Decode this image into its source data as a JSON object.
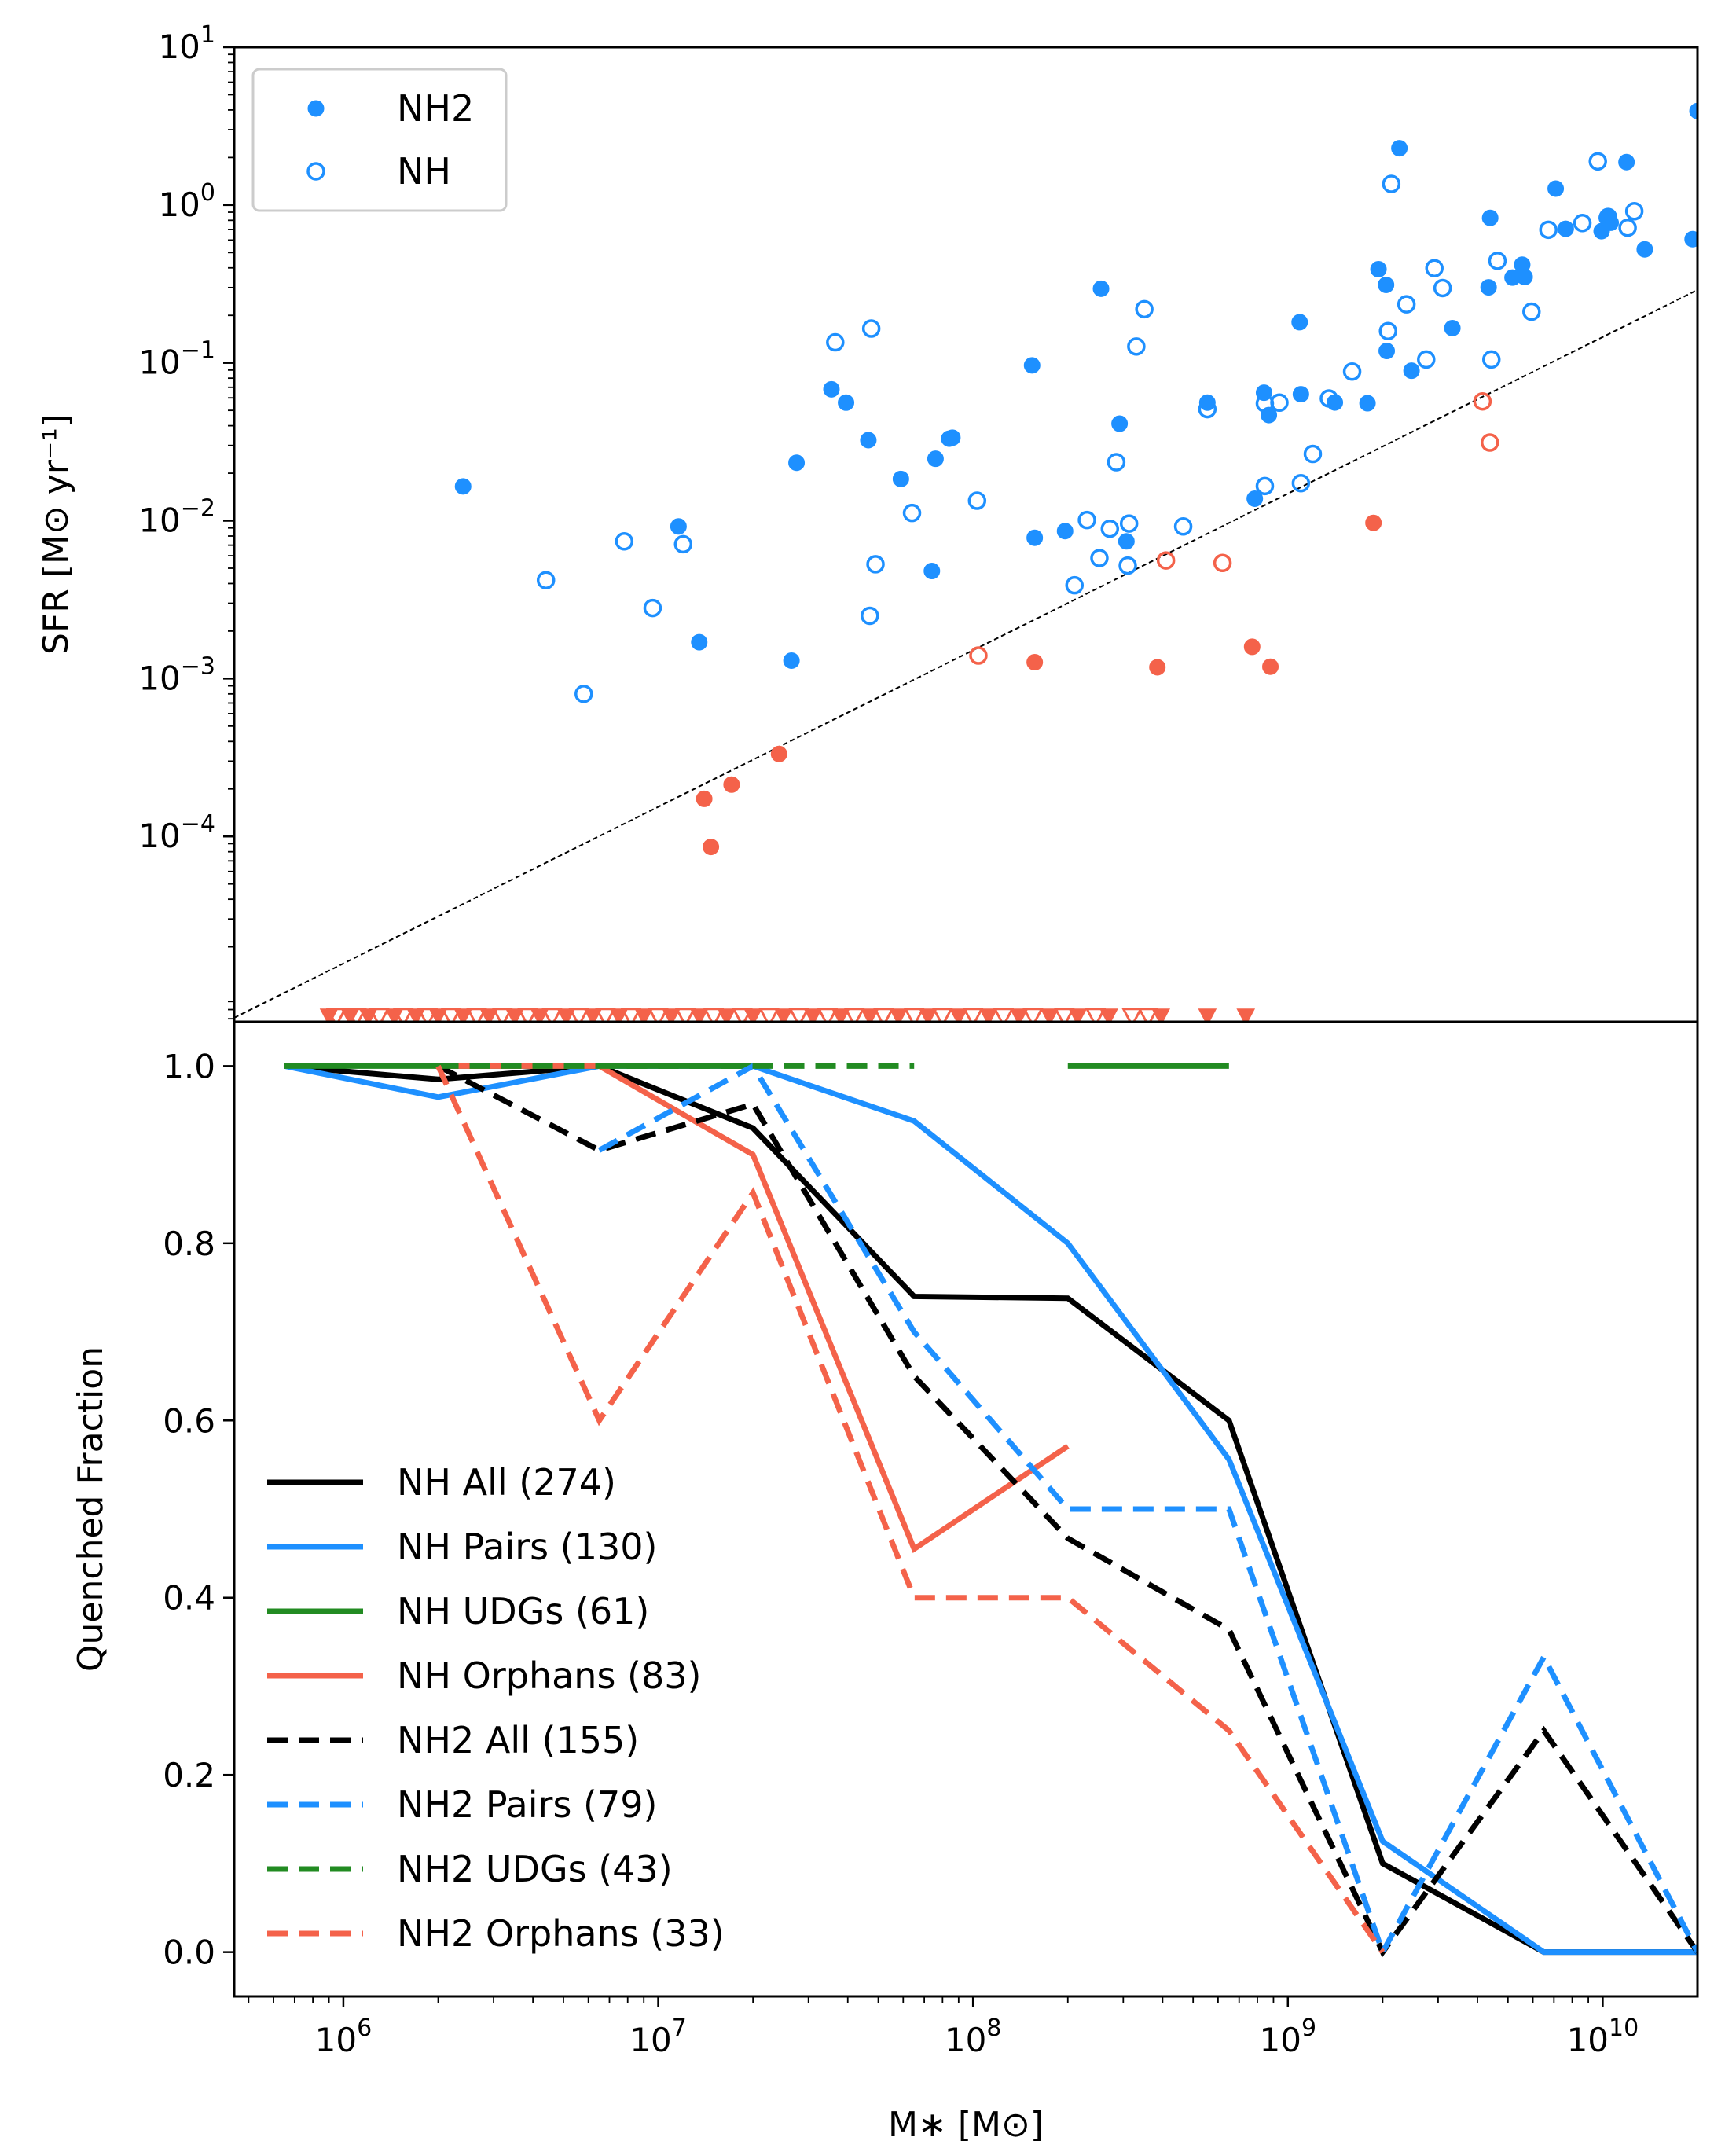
{
  "colors": {
    "blue": "#1e90ff",
    "red": "#f4624a",
    "green": "#228b22",
    "black": "#000000"
  },
  "chart_data": [
    {
      "panel": "top",
      "type": "scatter",
      "xscale": "log",
      "yscale": "log",
      "xlim": [
        450000,
        20000000000
      ],
      "ylim": [
        6.7e-06,
        10
      ],
      "ylabel": "SFR [M⊙ yr⁻¹]",
      "yticks": [
        {
          "value": 10,
          "label": "10",
          "exp": "1"
        },
        {
          "value": 1,
          "label": "10",
          "exp": "0"
        },
        {
          "value": 0.1,
          "label": "10",
          "exp": "−1"
        },
        {
          "value": 0.01,
          "label": "10",
          "exp": "−2"
        },
        {
          "value": 0.001,
          "label": "10",
          "exp": "−3"
        },
        {
          "value": 0.0001,
          "label": "10",
          "exp": "−4"
        }
      ],
      "legend": {
        "position": "top-left",
        "entries": [
          {
            "label": "NH2",
            "marker": "filled-circle"
          },
          {
            "label": "NH",
            "marker": "open-circle"
          }
        ]
      },
      "threshold_line": {
        "style": "dotted",
        "color": "black",
        "points": [
          [
            450000,
            7.1e-06
          ],
          [
            20000000000,
            0.29
          ]
        ]
      },
      "series": [
        {
          "name": "NH2",
          "marker": "filled-circle",
          "star_forming": [
            [
              2400000,
              0.0165
            ],
            [
              11600000,
              0.0092
            ],
            [
              13500000,
              0.0017
            ],
            [
              26500000,
              0.0013
            ],
            [
              27500000,
              0.0233
            ],
            [
              35500000,
              0.068
            ],
            [
              39500000,
              0.056
            ],
            [
              46500000,
              0.0324
            ],
            [
              59000000,
              0.0184
            ],
            [
              74000000,
              0.0048
            ],
            [
              76000000,
              0.0247
            ],
            [
              84000000,
              0.0331
            ],
            [
              86000000,
              0.0336
            ],
            [
              154000000,
              0.0964
            ],
            [
              157000000,
              0.0078
            ],
            [
              196000000,
              0.0086
            ],
            [
              255000000,
              0.295
            ],
            [
              292000000,
              0.0412
            ],
            [
              307000000,
              0.0074
            ],
            [
              555000000,
              0.056
            ],
            [
              785000000,
              0.0138
            ],
            [
              840000000,
              0.0647
            ],
            [
              870000000,
              0.0467
            ],
            [
              1090000000,
              0.181
            ],
            [
              1100000000,
              0.0633
            ],
            [
              1410000000,
              0.0561
            ],
            [
              1790000000,
              0.0555
            ],
            [
              1940000000,
              0.392
            ],
            [
              2050000000,
              0.312
            ],
            [
              2060000000,
              0.119
            ],
            [
              2260000000,
              2.29
            ],
            [
              2470000000,
              0.0892
            ],
            [
              3330000000,
              0.166
            ],
            [
              4340000000,
              0.301
            ],
            [
              4390000000,
              0.829
            ],
            [
              5170000000,
              0.347
            ],
            [
              5550000000,
              0.419
            ],
            [
              5650000000,
              0.35
            ],
            [
              7090000000,
              1.27
            ],
            [
              7630000000,
              0.707
            ],
            [
              9920000000,
              0.683
            ],
            [
              10300000000,
              0.83
            ],
            [
              10600000000,
              0.772
            ],
            [
              11900000000,
              1.87
            ],
            [
              13600000000,
              0.524
            ],
            [
              19300000000,
              0.608
            ],
            [
              20000000000,
              3.94
            ]
          ],
          "quenched": [
            [
              14000000,
              0.000173
            ],
            [
              14700000,
              8.58e-05
            ],
            [
              17100000,
              0.000213
            ],
            [
              24200000,
              0.000333
            ],
            [
              157000000,
              0.00127
            ],
            [
              385000000,
              0.00118
            ],
            [
              770000000,
              0.00159
            ],
            [
              880000000,
              0.00119
            ],
            [
              1870000000,
              0.0097
            ]
          ],
          "upper_limits": [
            [
              900000,
              7.2e-06
            ],
            [
              1050000,
              7.2e-06
            ],
            [
              1200000,
              7.2e-06
            ],
            [
              1450000,
              7.2e-06
            ],
            [
              1700000,
              7.2e-06
            ],
            [
              2000000,
              7.2e-06
            ],
            [
              2400000,
              7.2e-06
            ],
            [
              2900000,
              7.2e-06
            ],
            [
              3500000,
              7.2e-06
            ],
            [
              4200000,
              7.2e-06
            ],
            [
              5100000,
              7.2e-06
            ],
            [
              6200000,
              7.2e-06
            ],
            [
              7500000,
              7.2e-06
            ],
            [
              9000000,
              7.2e-06
            ],
            [
              11000000,
              7.2e-06
            ],
            [
              13500000,
              7.2e-06
            ],
            [
              16500000,
              7.2e-06
            ],
            [
              20000000,
              7.2e-06
            ],
            [
              25000000,
              7.2e-06
            ],
            [
              31000000,
              7.2e-06
            ],
            [
              38000000,
              7.2e-06
            ],
            [
              47000000,
              7.2e-06
            ],
            [
              58000000,
              7.2e-06
            ],
            [
              72000000,
              7.2e-06
            ],
            [
              90000000,
              7.2e-06
            ],
            [
              112000000,
              7.2e-06
            ],
            [
              140000000,
              7.2e-06
            ],
            [
              175000000,
              7.2e-06
            ],
            [
              215000000,
              7.2e-06
            ],
            [
              270000000,
              7.2e-06
            ],
            [
              395000000,
              7.2e-06
            ],
            [
              555000000,
              7.2e-06
            ],
            [
              735000000,
              7.2e-06
            ]
          ]
        },
        {
          "name": "NH",
          "marker": "open-circle",
          "star_forming": [
            [
              4400000,
              0.0042
            ],
            [
              5800000,
              0.0008
            ],
            [
              7800000,
              0.0074
            ],
            [
              9600000,
              0.0028
            ],
            [
              12000000,
              0.0071
            ],
            [
              36500000,
              0.135
            ],
            [
              47000000,
              0.0025
            ],
            [
              47500000,
              0.165
            ],
            [
              49000000,
              0.0053
            ],
            [
              64000000,
              0.0112
            ],
            [
              103000000,
              0.0134
            ],
            [
              210000000,
              0.0039
            ],
            [
              230000000,
              0.0101
            ],
            [
              252000000,
              0.0058
            ],
            [
              272000000,
              0.0089
            ],
            [
              285000000,
              0.0235
            ],
            [
              310000000,
              0.0052
            ],
            [
              313000000,
              0.0096
            ],
            [
              330000000,
              0.127
            ],
            [
              350000000,
              0.219
            ],
            [
              465000000,
              0.0092
            ],
            [
              555000000,
              0.0509
            ],
            [
              845000000,
              0.0166
            ],
            [
              845000000,
              0.0553
            ],
            [
              940000000,
              0.056
            ],
            [
              1100000000,
              0.0173
            ],
            [
              1200000000,
              0.0265
            ],
            [
              1350000000,
              0.0595
            ],
            [
              1600000000,
              0.0881
            ],
            [
              2080000000,
              0.159
            ],
            [
              2130000000,
              1.36
            ],
            [
              2380000000,
              0.235
            ],
            [
              2750000000,
              0.105
            ],
            [
              2920000000,
              0.398
            ],
            [
              3100000000,
              0.298
            ],
            [
              4430000000,
              0.105
            ],
            [
              4630000000,
              0.443
            ],
            [
              5940000000,
              0.211
            ],
            [
              6720000000,
              0.697
            ],
            [
              8620000000,
              0.769
            ],
            [
              9650000000,
              1.89
            ],
            [
              10400000000,
              0.839
            ],
            [
              12000000000,
              0.718
            ],
            [
              12600000000,
              0.913
            ]
          ],
          "quenched": [
            [
              104000000,
              0.0014
            ],
            [
              410000000,
              0.0056
            ],
            [
              620000000,
              0.0054
            ],
            [
              4150000000,
              0.057
            ],
            [
              4380000000,
              0.0313
            ]
          ],
          "upper_limits": [
            [
              950000,
              7.2e-06
            ],
            [
              1100000,
              7.2e-06
            ],
            [
              1300000,
              7.2e-06
            ],
            [
              1550000,
              7.2e-06
            ],
            [
              1850000,
              7.2e-06
            ],
            [
              2200000,
              7.2e-06
            ],
            [
              2650000,
              7.2e-06
            ],
            [
              3200000,
              7.2e-06
            ],
            [
              3850000,
              7.2e-06
            ],
            [
              4600000,
              7.2e-06
            ],
            [
              5600000,
              7.2e-06
            ],
            [
              6800000,
              7.2e-06
            ],
            [
              8200000,
              7.2e-06
            ],
            [
              10000000,
              7.2e-06
            ],
            [
              12200000,
              7.2e-06
            ],
            [
              15000000,
              7.2e-06
            ],
            [
              18500000,
              7.2e-06
            ],
            [
              22500000,
              7.2e-06
            ],
            [
              28000000,
              7.2e-06
            ],
            [
              34500000,
              7.2e-06
            ],
            [
              42000000,
              7.2e-06
            ],
            [
              52000000,
              7.2e-06
            ],
            [
              65000000,
              7.2e-06
            ],
            [
              80000000,
              7.2e-06
            ],
            [
              100000000,
              7.2e-06
            ],
            [
              125000000,
              7.2e-06
            ],
            [
              155000000,
              7.2e-06
            ],
            [
              195000000,
              7.2e-06
            ],
            [
              245000000,
              7.2e-06
            ],
            [
              320000000,
              7.2e-06
            ],
            [
              360000000,
              7.2e-06
            ]
          ]
        }
      ]
    },
    {
      "panel": "bottom",
      "type": "line",
      "xscale": "log",
      "xlim": [
        450000,
        20000000000
      ],
      "ylim": [
        -0.05,
        1.05
      ],
      "xlabel": "M∗ [M⊙]",
      "ylabel": "Quenched Fraction",
      "xticks": [
        {
          "value": 1000000,
          "label": "10",
          "exp": "6"
        },
        {
          "value": 10000000,
          "label": "10",
          "exp": "7"
        },
        {
          "value": 100000000,
          "label": "10",
          "exp": "8"
        },
        {
          "value": 1000000000,
          "label": "10",
          "exp": "9"
        },
        {
          "value": 10000000000,
          "label": "10",
          "exp": "10"
        }
      ],
      "yticks": [
        "0.0",
        "0.2",
        "0.4",
        "0.6",
        "0.8",
        "1.0"
      ],
      "legend": {
        "position": "lower-left"
      },
      "series": [
        {
          "name": "NH All (274)",
          "color": "black",
          "dash": "solid",
          "x": [
            650000,
            2000000,
            6500000,
            20000000,
            65000000,
            200000000,
            650000000,
            2000000000,
            6500000000,
            20000000000
          ],
          "y": [
            1.0,
            0.985,
            1.0,
            0.93,
            0.74,
            0.738,
            0.6,
            0.1,
            0.0,
            0.0
          ]
        },
        {
          "name": "NH Pairs (130)",
          "color": "blue",
          "dash": "solid",
          "x": [
            650000,
            2000000,
            6500000,
            20000000,
            65000000,
            200000000,
            650000000,
            2000000000,
            6500000000,
            20000000000
          ],
          "y": [
            1.0,
            0.965,
            1.0,
            1.0,
            0.938,
            0.8,
            0.556,
            0.125,
            0.0,
            0.0
          ]
        },
        {
          "name": "NH UDGs (61)",
          "color": "green",
          "dash": "solid",
          "x": [
            650000,
            2000000,
            6500000,
            20000000,
            null,
            200000000,
            650000000
          ],
          "y": [
            1.0,
            1.0,
            1.0,
            1.0,
            null,
            1.0,
            1.0
          ]
        },
        {
          "name": "NH Orphans (83)",
          "color": "red",
          "dash": "solid",
          "x": [
            2000000,
            6500000,
            20000000,
            65000000,
            200000000
          ],
          "y": [
            1.0,
            1.0,
            0.9,
            0.455,
            0.571
          ]
        },
        {
          "name": "NH2 All (155)",
          "color": "black",
          "dash": "dashed",
          "x": [
            2000000,
            6500000,
            20000000,
            65000000,
            200000000,
            650000000,
            2000000000,
            6500000000,
            20000000000
          ],
          "y": [
            1.0,
            0.905,
            0.957,
            0.65,
            0.467,
            0.364,
            0.0,
            0.25,
            0.0
          ]
        },
        {
          "name": "NH2 Pairs (79)",
          "color": "blue",
          "dash": "dashed",
          "x": [
            6500000,
            20000000,
            65000000,
            200000000,
            650000000,
            2000000000,
            6500000000,
            20000000000
          ],
          "y": [
            0.905,
            1.0,
            0.7,
            0.5,
            0.5,
            0.0,
            0.333,
            0.0
          ]
        },
        {
          "name": "NH2 UDGs (43)",
          "color": "green",
          "dash": "dashed",
          "x": [
            2000000,
            6500000,
            20000000,
            65000000
          ],
          "y": [
            1.0,
            1.0,
            1.0,
            1.0
          ]
        },
        {
          "name": "NH2 Orphans (33)",
          "color": "red",
          "dash": "dashed",
          "x": [
            2000000,
            6500000,
            20000000,
            65000000,
            200000000,
            650000000,
            2000000000
          ],
          "y": [
            1.0,
            0.6,
            0.857,
            0.4,
            0.4,
            0.25,
            0.0
          ]
        }
      ]
    }
  ]
}
